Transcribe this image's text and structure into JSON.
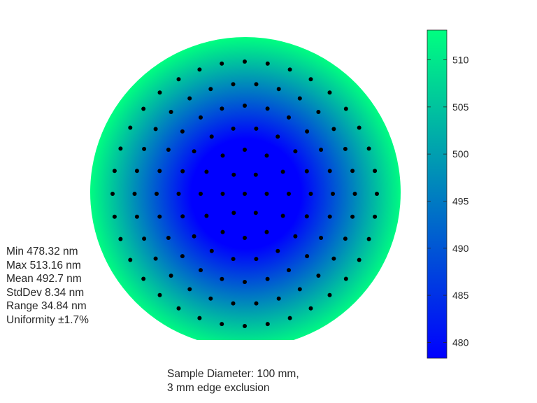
{
  "chart_data": {
    "type": "heatmap",
    "title": "",
    "xlabel": "",
    "ylabel": "",
    "colormap": "winter",
    "colormap_stops": [
      "#0000ff",
      "#00ff80"
    ],
    "point_color": "#000000",
    "colorbar": {
      "range": [
        478.32,
        513.16
      ],
      "ticks": [
        480,
        485,
        490,
        495,
        500,
        505,
        510
      ],
      "tick_labels": [
        "480",
        "485",
        "490",
        "495",
        "500",
        "505",
        "510"
      ]
    },
    "wafer": {
      "sample_diameter_mm": 100,
      "edge_exclusion_mm": 3,
      "flat": "bottom"
    },
    "measurement_points": {
      "pattern": "concentric rings",
      "ring_counts": [
        1,
        6,
        12,
        18,
        24,
        30,
        36
      ],
      "total": 127
    }
  },
  "stats": {
    "min": "Min 478.32 nm",
    "max": "Max 513.16 nm",
    "mean": "Mean 492.7 nm",
    "stddev": "StdDev 8.34 nm",
    "range": "Range 34.84 nm",
    "uniformity": "Uniformity ±1.7%"
  },
  "caption": {
    "line1": "Sample Diameter: 100 mm,",
    "line2": "3 mm edge exclusion"
  }
}
